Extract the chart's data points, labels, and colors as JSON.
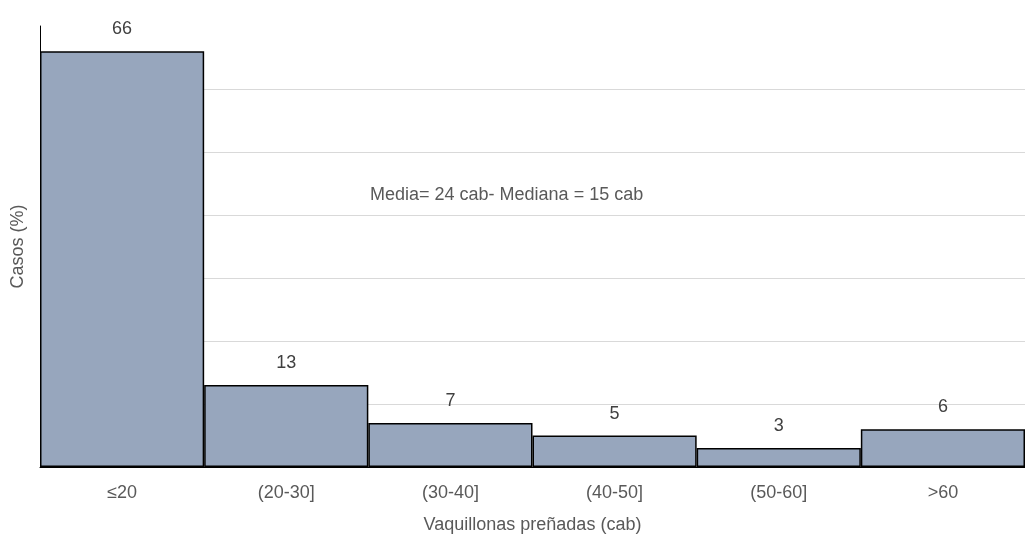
{
  "chart_data": {
    "type": "bar",
    "xlabel": "Vaquillonas preñadas (cab)",
    "ylabel": "Casos (%)",
    "categories": [
      "≤20",
      "(20-30]",
      "(30-40]",
      "(40-50]",
      "(50-60]",
      ">60"
    ],
    "values": [
      66,
      13,
      7,
      5,
      3,
      6
    ],
    "color": "#97a6bd",
    "data_labels": true,
    "ylim": [
      0,
      70
    ],
    "yticks": [
      {
        "value": 0,
        "label": null
      },
      {
        "value": 10,
        "label": null
      },
      {
        "value": 20,
        "label": null
      },
      {
        "value": 30,
        "label": null
      },
      {
        "value": 40,
        "label": null
      },
      {
        "value": 50,
        "label": null
      },
      {
        "value": 60,
        "label": null
      }
    ],
    "tick_labels": "x",
    "grid": "y",
    "annotations": [
      "Media= 24 cab- Mediana = 15 cab"
    ]
  }
}
